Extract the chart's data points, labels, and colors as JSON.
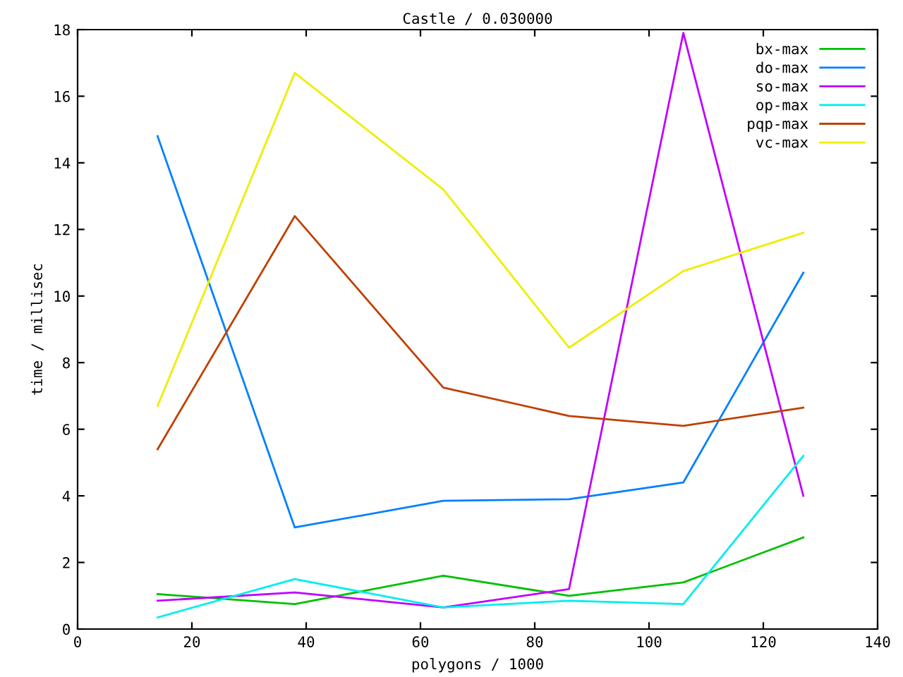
{
  "chart_data": {
    "type": "line",
    "title": "Castle / 0.030000",
    "xlabel": "polygons / 1000",
    "ylabel": "time / millisec",
    "x": [
      14,
      38,
      64,
      86,
      106,
      127
    ],
    "series": [
      {
        "name": "bx-max",
        "color": "#00c000",
        "values": [
          1.05,
          0.75,
          1.6,
          1.0,
          1.4,
          2.75
        ]
      },
      {
        "name": "do-max",
        "color": "#0080ff",
        "values": [
          14.8,
          3.05,
          3.85,
          3.9,
          4.4,
          10.7
        ]
      },
      {
        "name": "so-max",
        "color": "#c000ff",
        "values": [
          0.85,
          1.1,
          0.65,
          1.2,
          17.9,
          4.0
        ]
      },
      {
        "name": "op-max",
        "color": "#00eeee",
        "values": [
          0.35,
          1.5,
          0.65,
          0.85,
          0.75,
          5.2
        ]
      },
      {
        "name": "pqp-max",
        "color": "#c04000",
        "values": [
          5.4,
          12.4,
          7.25,
          6.4,
          6.1,
          6.65
        ]
      },
      {
        "name": "vc-max",
        "color": "#eeee00",
        "values": [
          6.7,
          16.7,
          13.2,
          8.45,
          10.75,
          11.9
        ]
      }
    ],
    "xlim": [
      0,
      140
    ],
    "xticks": [
      0,
      20,
      40,
      60,
      80,
      100,
      120,
      140
    ],
    "ylim": [
      0,
      18
    ],
    "yticks": [
      0,
      2,
      4,
      6,
      8,
      10,
      12,
      14,
      16,
      18
    ],
    "grid": false,
    "legend": "top right",
    "marker": "none",
    "line_style": "solid"
  }
}
